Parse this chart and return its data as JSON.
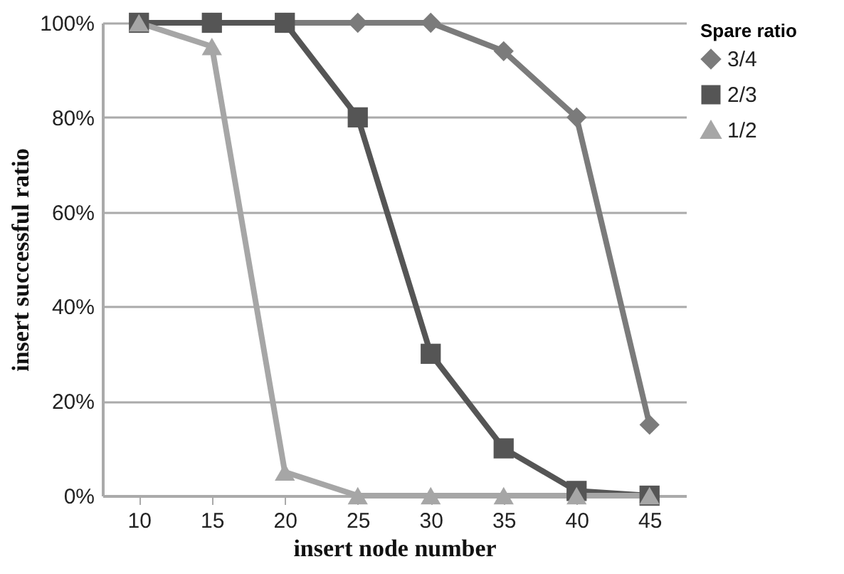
{
  "chart_data": {
    "type": "line",
    "xlabel": "insert node number",
    "ylabel": "insert successful ratio",
    "legend_title": "Spare ratio",
    "categories": [
      "10",
      "15",
      "20",
      "25",
      "30",
      "35",
      "40",
      "45"
    ],
    "series": [
      {
        "name": "3/4",
        "color": "#7b7b7b",
        "marker": "diamond",
        "values": [
          100,
          100,
          100,
          100,
          100,
          94,
          80,
          15
        ]
      },
      {
        "name": "2/3",
        "color": "#555555",
        "marker": "square",
        "values": [
          100,
          100,
          100,
          80,
          30,
          10,
          1,
          0
        ]
      },
      {
        "name": "1/2",
        "color": "#a6a6a6",
        "marker": "triangle",
        "values": [
          100,
          95,
          5,
          0,
          0,
          0,
          0,
          0
        ]
      }
    ],
    "ylim": [
      0,
      100
    ],
    "yticks": [
      {
        "value": 0,
        "label": "0%"
      },
      {
        "value": 20,
        "label": "20%"
      },
      {
        "value": 40,
        "label": "40%"
      },
      {
        "value": 60,
        "label": "60%"
      },
      {
        "value": 80,
        "label": "80%"
      },
      {
        "value": 100,
        "label": "100%"
      }
    ],
    "grid": "y",
    "legend": "right",
    "line_style": "solid"
  }
}
